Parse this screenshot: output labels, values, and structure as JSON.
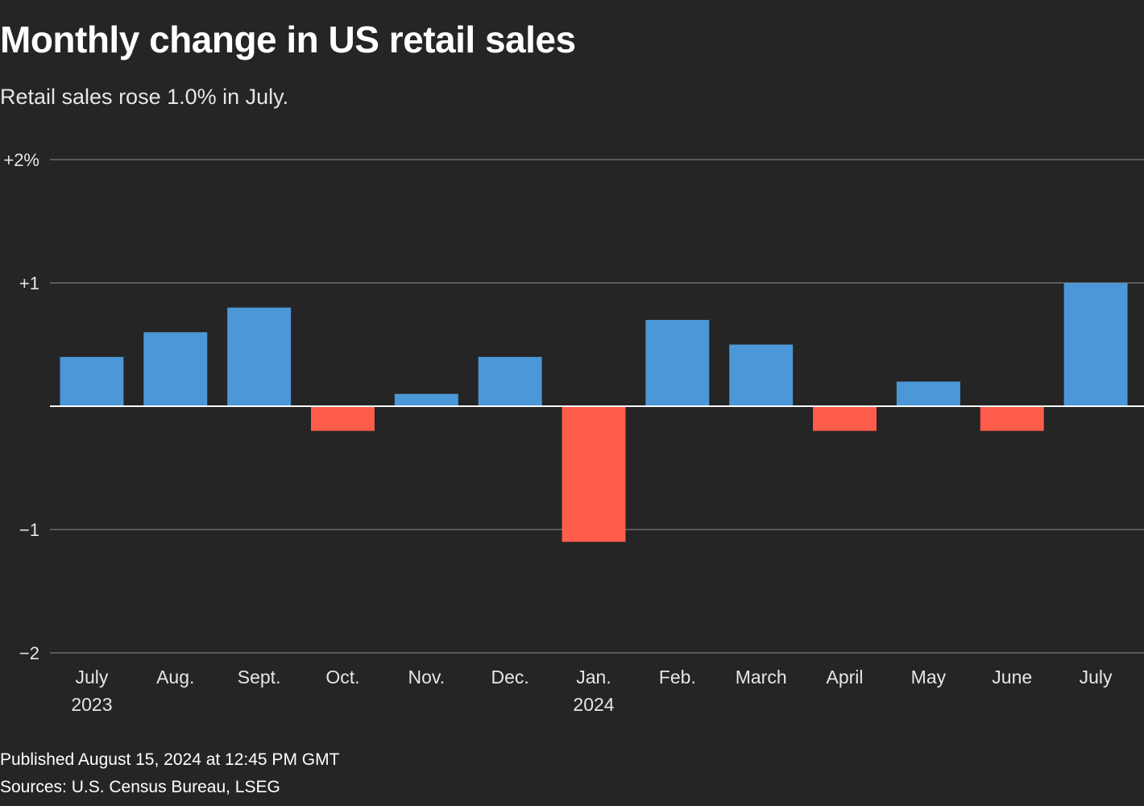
{
  "chart_data": {
    "type": "bar",
    "title": "Monthly change in US retail sales",
    "subtitle": "Retail sales rose 1.0% in July.",
    "categories": [
      [
        "July",
        "2023"
      ],
      [
        "Aug."
      ],
      [
        "Sept."
      ],
      [
        "Oct."
      ],
      [
        "Nov."
      ],
      [
        "Dec."
      ],
      [
        "Jan.",
        "2024"
      ],
      [
        "Feb."
      ],
      [
        "March"
      ],
      [
        "April"
      ],
      [
        "May"
      ],
      [
        "June"
      ],
      [
        "July"
      ]
    ],
    "values": [
      0.4,
      0.6,
      0.8,
      -0.2,
      0.1,
      0.4,
      -1.1,
      0.7,
      0.5,
      -0.2,
      0.2,
      -0.2,
      1.0
    ],
    "ylim": [
      -2,
      2
    ],
    "yticks": [
      {
        "value": 2,
        "label": "+2%"
      },
      {
        "value": 1,
        "label": "+1"
      },
      {
        "value": -1,
        "label": "−1"
      },
      {
        "value": -2,
        "label": "−2"
      }
    ],
    "xlabel": "",
    "ylabel": "",
    "grid": true,
    "colors": {
      "positive": "#4c97d7",
      "negative": "#ff5d4b",
      "grid": "#6b6b6b",
      "zero": "#ffffff"
    }
  },
  "footer": {
    "published": "Published August 15, 2024 at 12:45 PM GMT",
    "sources": "Sources: U.S. Census Bureau, LSEG"
  }
}
